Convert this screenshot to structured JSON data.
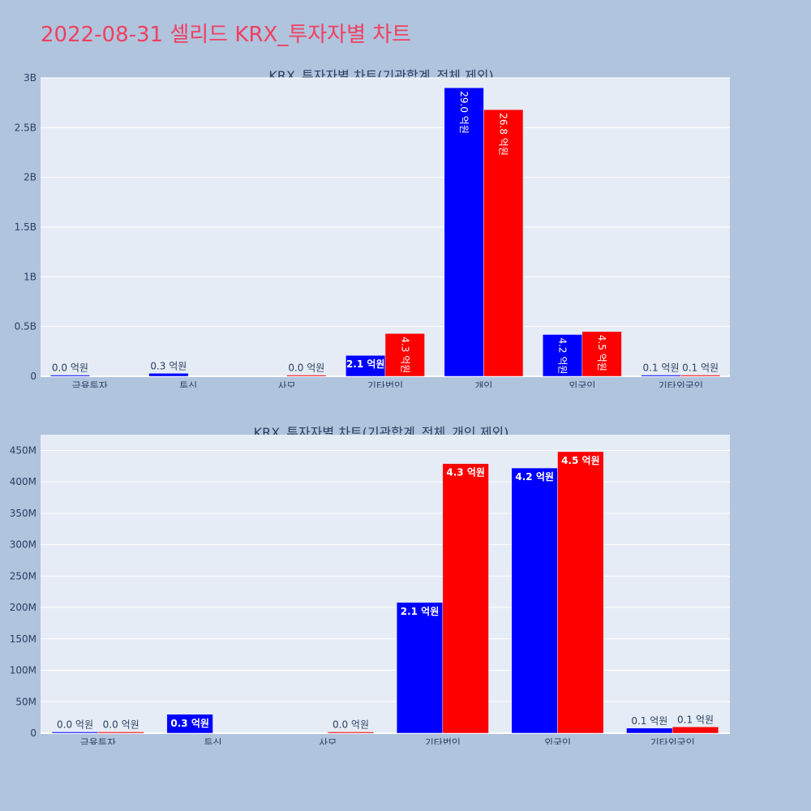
{
  "title": "2022-08-31 셀리드 KRX_투자자별 차트",
  "colors": {
    "buy": "#0000ff",
    "sell": "#ff0000",
    "plot_bg": "#e5ecf6",
    "page_bg": "#b0c4de",
    "title": "#ef4060"
  },
  "chart_data": [
    {
      "type": "bar",
      "title": "KRX_투자자별 차트(기관합계_전체 제외)",
      "categories": [
        "금융투자",
        "투신",
        "사모",
        "기타법인",
        "개인",
        "외국인",
        "기타외국인"
      ],
      "ylim": [
        0,
        3000000000
      ],
      "yticks": [
        0,
        500000000,
        1000000000,
        1500000000,
        2000000000,
        2500000000,
        3000000000
      ],
      "ytick_labels": [
        "0",
        "0.5B",
        "1B",
        "1.5B",
        "2B",
        "2.5B",
        "3B"
      ],
      "grid": true,
      "series": [
        {
          "color": "#0000ff",
          "values": [
            0,
            30000000,
            null,
            210000000,
            2900000000,
            420000000,
            10000000
          ],
          "labels": [
            "0.0 억원",
            "0.3 억원",
            null,
            "2.1 억원",
            "29.0 억원",
            "4.2 억원",
            "0.1 억원"
          ]
        },
        {
          "color": "#ff0000",
          "values": [
            null,
            null,
            0,
            430000000,
            2680000000,
            450000000,
            10000000
          ],
          "labels": [
            null,
            null,
            "0.0 억원",
            "4.3 억원",
            "26.8 억원",
            "4.5 억원",
            "0.1 억원"
          ]
        }
      ]
    },
    {
      "type": "bar",
      "title": "KRX_투자자별 차트(기관합계_전체_개인 제외)",
      "categories": [
        "금융투자",
        "투신",
        "사모",
        "기타법인",
        "외국인",
        "기타외국인"
      ],
      "ylim": [
        0,
        475000000
      ],
      "yticks": [
        0,
        50000000,
        100000000,
        150000000,
        200000000,
        250000000,
        300000000,
        350000000,
        400000000,
        450000000
      ],
      "ytick_labels": [
        "0",
        "50M",
        "100M",
        "150M",
        "200M",
        "250M",
        "300M",
        "350M",
        "400M",
        "450M"
      ],
      "grid": true,
      "series": [
        {
          "color": "#0000ff",
          "values": [
            0,
            30000000,
            null,
            208000000,
            422000000,
            8000000
          ],
          "labels": [
            "0.0 억원",
            "0.3 억원",
            null,
            "2.1 억원",
            "4.2 억원",
            "0.1 억원"
          ]
        },
        {
          "color": "#ff0000",
          "values": [
            0,
            null,
            1000000,
            429000000,
            448000000,
            10000000
          ],
          "labels": [
            "0.0 억원",
            null,
            "0.0 억원",
            "4.3 억원",
            "4.5 억원",
            "0.1 억원"
          ]
        }
      ]
    }
  ]
}
